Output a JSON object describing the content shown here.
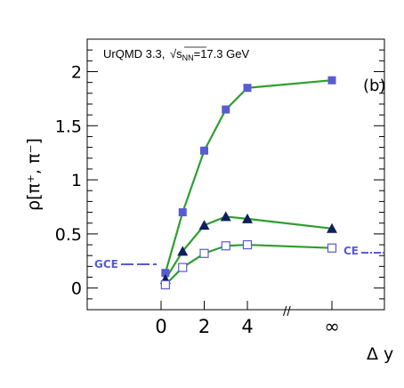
{
  "chart_data": {
    "type": "line",
    "ylabel": "ρ[π⁺, π⁻]",
    "xlabel": "Δ y",
    "ylim": [
      -0.2,
      2.3
    ],
    "y_ticks": [
      "0",
      "0.5",
      "1",
      "1.5",
      "2"
    ],
    "x_ticks": [
      "0",
      "2",
      "4",
      "∞"
    ],
    "x_break_marker": "//",
    "annotation": {
      "prefix": "UrQMD 3.3, ",
      "sqrt_arg": "s",
      "sqrt_sub": "NN",
      "suffix": "=17.3 GeV"
    },
    "panel_label": "(b)",
    "reference_labels": {
      "left": {
        "text": "GCE",
        "color": "#5a5ad2"
      },
      "right": {
        "text": "CE",
        "color": "#5a5ad2"
      }
    },
    "line_color": "#2e9e2e",
    "x": [
      0.2,
      1.0,
      2.0,
      3.0,
      4.0,
      "∞"
    ],
    "series": [
      {
        "marker": "square-filled",
        "color": "#5a5ad2",
        "values": [
          0.14,
          0.7,
          1.27,
          1.65,
          1.85,
          1.92
        ]
      },
      {
        "marker": "triangle-filled",
        "color": "#0d1f5c",
        "values": [
          0.08,
          0.34,
          0.58,
          0.66,
          0.64,
          0.55
        ]
      },
      {
        "marker": "square-open",
        "color": "#5a5ad2",
        "values": [
          0.03,
          0.19,
          0.32,
          0.39,
          0.4,
          0.37
        ]
      }
    ]
  }
}
